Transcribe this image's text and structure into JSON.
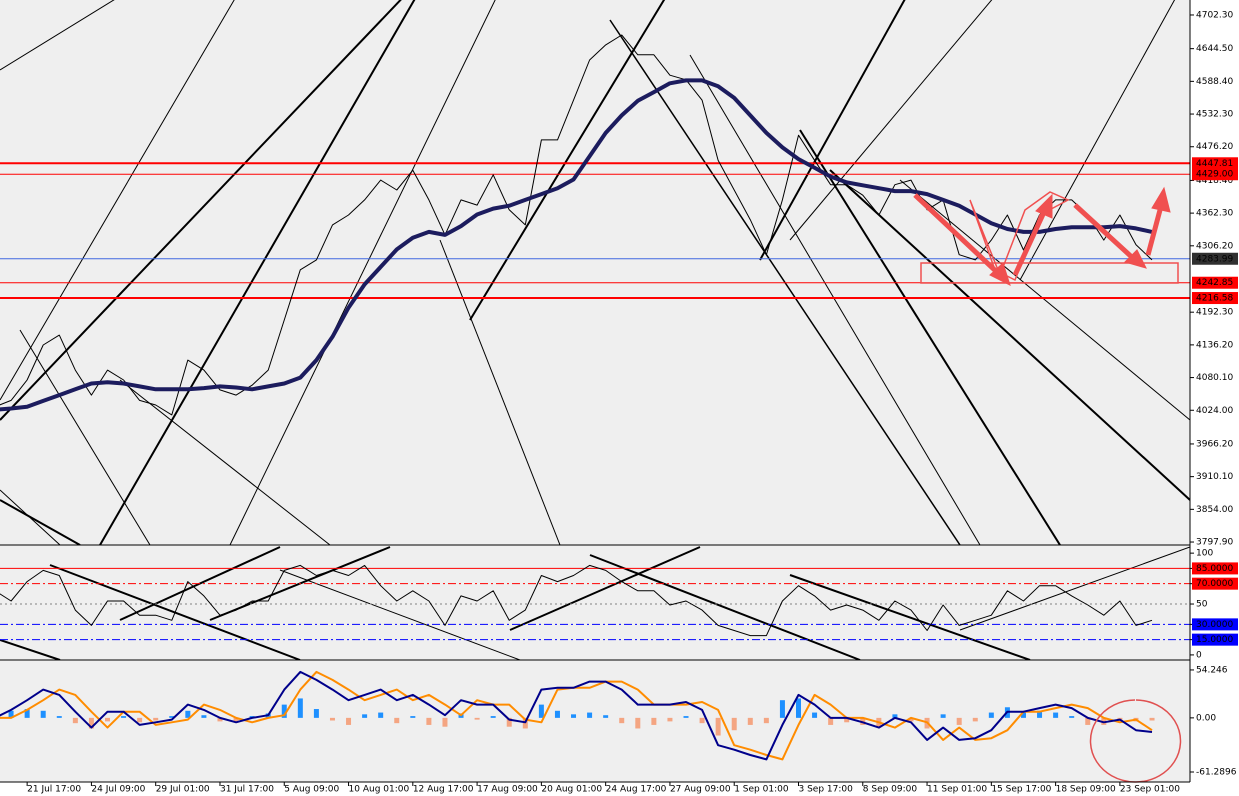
{
  "chart_data": [
    {
      "type": "line",
      "categories": [
        null,
        null,
        "21 Jul 17:00",
        null,
        null,
        null,
        "24 Jul 09:00",
        null,
        null,
        null,
        "29 Jul 01:00",
        null,
        null,
        null,
        "31 Jul 17:00",
        null,
        null,
        null,
        "5 Aug 09:00",
        null,
        null,
        null,
        "10 Aug 01:00",
        null,
        null,
        null,
        "12 Aug 17:00",
        null,
        null,
        null,
        "17 Aug 09:00",
        null,
        null,
        null,
        "20 Aug 01:00",
        null,
        null,
        null,
        "24 Aug 17:00",
        null,
        null,
        null,
        "27 Aug 09:00",
        null,
        null,
        null,
        "1 Sep 01:00",
        null,
        null,
        null,
        "3 Sep 17:00",
        null,
        null,
        null,
        "8 Sep 09:00",
        null,
        null,
        null,
        "11 Sep 01:00",
        null,
        null,
        null,
        "15 Sep 17:00",
        null,
        null,
        null,
        "18 Sep 09:00",
        null,
        null,
        null,
        "23 Sep 01:00",
        null,
        null
      ],
      "series": [
        {
          "color": "#000000",
          "width": 1,
          "values": [
            4030,
            4041,
            4076,
            4136,
            4153,
            4093,
            4050,
            4093,
            4076,
            4041,
            4033,
            4016,
            4110,
            4093,
            4059,
            4050,
            4067,
            4093,
            4179,
            4265,
            4282,
            4342,
            4359,
            4385,
            4419,
            4402,
            4436,
            4385,
            4325,
            4385,
            4376,
            4428,
            4368,
            4342,
            4488,
            4488,
            4556,
            4625,
            4651,
            4668,
            4634,
            4634,
            4599,
            4591,
            4556,
            4453,
            4402,
            4351,
            4291,
            4385,
            4496,
            4453,
            4411,
            4411,
            4393,
            4359,
            4411,
            4419,
            4368,
            4385,
            4291,
            4282,
            4316,
            4359,
            4299,
            4359,
            4385,
            4385,
            4359,
            4316,
            4359,
            4308,
            4282
          ]
        },
        {
          "color": "#1c1c5e",
          "width": 4,
          "values": [
            4025,
            4027,
            4030,
            4040,
            4050,
            4060,
            4070,
            4072,
            4070,
            4065,
            4060,
            4060,
            4060,
            4062,
            4065,
            4063,
            4060,
            4065,
            4070,
            4080,
            4110,
            4150,
            4200,
            4240,
            4270,
            4300,
            4320,
            4330,
            4325,
            4340,
            4360,
            4370,
            4375,
            4385,
            4395,
            4405,
            4420,
            4460,
            4500,
            4530,
            4555,
            4570,
            4585,
            4590,
            4590,
            4580,
            4560,
            4530,
            4500,
            4475,
            4455,
            4440,
            4425,
            4415,
            4410,
            4405,
            4400,
            4400,
            4395,
            4385,
            4375,
            4360,
            4345,
            4335,
            4330,
            4330,
            4335,
            4338,
            4338,
            4338,
            4340,
            4336,
            4330
          ]
        }
      ],
      "ylim": [
        3792.8,
        4728.0
      ],
      "yticks": [
        {
          "value": 4702.3,
          "label": "4702.30"
        },
        {
          "value": 4644.5,
          "label": "4644.50"
        },
        {
          "value": 4588.4,
          "label": "4588.40"
        },
        {
          "value": 4532.3,
          "label": "4532.30"
        },
        {
          "value": 4476.2,
          "label": "4476.20"
        },
        {
          "value": 4418.4,
          "label": "4418.40"
        },
        {
          "value": 4362.3,
          "label": "4362.30"
        },
        {
          "value": 4306.2,
          "label": "4306.20"
        },
        {
          "value": 4192.3,
          "label": "4192.30"
        },
        {
          "value": 4136.2,
          "label": "4136.20"
        },
        {
          "value": 4080.1,
          "label": "4080.10"
        },
        {
          "value": 4024.0,
          "label": "4024.00"
        },
        {
          "value": 3966.2,
          "label": "3966.20"
        },
        {
          "value": 3910.1,
          "label": "3910.10"
        },
        {
          "value": 3854.0,
          "label": "3854.00"
        },
        {
          "value": 3797.9,
          "label": "3797.90"
        }
      ],
      "levels": [
        {
          "value": 4447.81,
          "color": "#ff0000",
          "width": 2,
          "box": "#ff0000"
        },
        {
          "value": 4429.0,
          "label": "4429.00",
          "color": "#ff0000",
          "width": 1,
          "box": "#ff0000"
        },
        {
          "value": 4283.99,
          "color": "#4169e1",
          "width": 1,
          "box": "#303030"
        },
        {
          "value": 4242.85,
          "color": "#ff0000",
          "width": 1,
          "box": "#ff0000"
        },
        {
          "value": 4216.58,
          "color": "#ff0000",
          "width": 2,
          "box": "#ff0000"
        }
      ]
    },
    {
      "type": "line",
      "series": [
        {
          "color": "#000000",
          "width": 1,
          "values": [
            63,
            53,
            72,
            83,
            78,
            44,
            29,
            53,
            53,
            39,
            39,
            34,
            72,
            58,
            39,
            44,
            53,
            53,
            83,
            88,
            78,
            83,
            78,
            88,
            68,
            53,
            63,
            53,
            29,
            58,
            53,
            63,
            34,
            44,
            78,
            72,
            78,
            88,
            83,
            72,
            63,
            63,
            49,
            53,
            44,
            29,
            24,
            19,
            19,
            53,
            68,
            58,
            44,
            49,
            44,
            34,
            53,
            44,
            24,
            49,
            29,
            34,
            39,
            63,
            53,
            68,
            68,
            58,
            49,
            39,
            53,
            29,
            34
          ]
        }
      ],
      "ylim": [
        -5,
        108
      ],
      "yticks": [
        100,
        {
          "value": 85,
          "label": "85.0000",
          "line": "#ff0000",
          "dash": "solid",
          "box": "#ff0000"
        },
        {
          "value": 70,
          "label": "70.0000",
          "line": "#ff0000",
          "dash": "dashdot",
          "box": "#ff0000"
        },
        {
          "value": 50,
          "line": "#808080",
          "dash": "dot"
        },
        {
          "value": 30,
          "label": "30.0000",
          "line": "#0000ff",
          "dash": "dashdot",
          "box": "#0000ff"
        },
        {
          "value": 15,
          "label": "15.0000",
          "line": "#0000ff",
          "dash": "dashdot",
          "box": "#0000ff"
        },
        0
      ]
    },
    {
      "type": "combo",
      "series": [
        {
          "kind": "bar",
          "color": "#1e90ff",
          "negative_color": "#f4a582",
          "values": [
            3,
            8,
            10,
            8,
            2,
            -6,
            -12,
            -4,
            2,
            -5,
            -3,
            2,
            8,
            3,
            -4,
            -4,
            2,
            5,
            15,
            22,
            10,
            -3,
            -8,
            4,
            6,
            -6,
            2,
            -8,
            -10,
            5,
            -2,
            2,
            -10,
            -12,
            15,
            8,
            4,
            6,
            3,
            -6,
            -12,
            -8,
            -4,
            2,
            -6,
            -20,
            -14,
            -8,
            -6,
            20,
            22,
            6,
            -8,
            -5,
            -8,
            -10,
            4,
            -4,
            -12,
            4,
            -8,
            -4,
            6,
            12,
            6,
            8,
            6,
            2,
            -8,
            -8,
            -4,
            -4,
            -3
          ]
        },
        {
          "kind": "line",
          "color": "#ff8c00",
          "width": 2,
          "values": [
            0,
            0,
            9,
            20,
            32,
            26,
            7,
            -11,
            7,
            7,
            -8,
            -5,
            -2,
            15,
            9,
            0,
            -5,
            0,
            3,
            32,
            52,
            43,
            32,
            20,
            26,
            32,
            20,
            26,
            15,
            3,
            20,
            15,
            15,
            -2,
            -5,
            32,
            34,
            34,
            41,
            41,
            32,
            15,
            15,
            15,
            18,
            9,
            -31,
            -36,
            -42,
            -47,
            -8,
            26,
            15,
            0,
            0,
            -5,
            -11,
            0,
            -5,
            -25,
            -11,
            -25,
            -23,
            -14,
            7,
            7,
            11,
            15,
            11,
            0,
            -5,
            -2,
            -14
          ]
        },
        {
          "kind": "line",
          "color": "#00008b",
          "width": 2,
          "values": [
            0,
            9,
            20,
            32,
            26,
            7,
            -11,
            7,
            7,
            -8,
            -5,
            -2,
            15,
            9,
            0,
            -5,
            0,
            3,
            32,
            52,
            43,
            32,
            20,
            26,
            32,
            20,
            26,
            15,
            3,
            20,
            15,
            15,
            -2,
            -5,
            32,
            34,
            34,
            41,
            41,
            32,
            15,
            15,
            15,
            18,
            9,
            -31,
            -36,
            -42,
            -47,
            -8,
            26,
            15,
            0,
            0,
            -5,
            -11,
            0,
            -5,
            -25,
            -11,
            -25,
            -23,
            -14,
            7,
            7,
            11,
            15,
            11,
            0,
            -5,
            -2,
            -14,
            -16
          ]
        }
      ],
      "ylim": [
        -72.6,
        65.5
      ],
      "yticks": [
        54.246,
        {
          "value": 0,
          "label": "0.00"
        },
        -61.2896
      ]
    }
  ]
}
